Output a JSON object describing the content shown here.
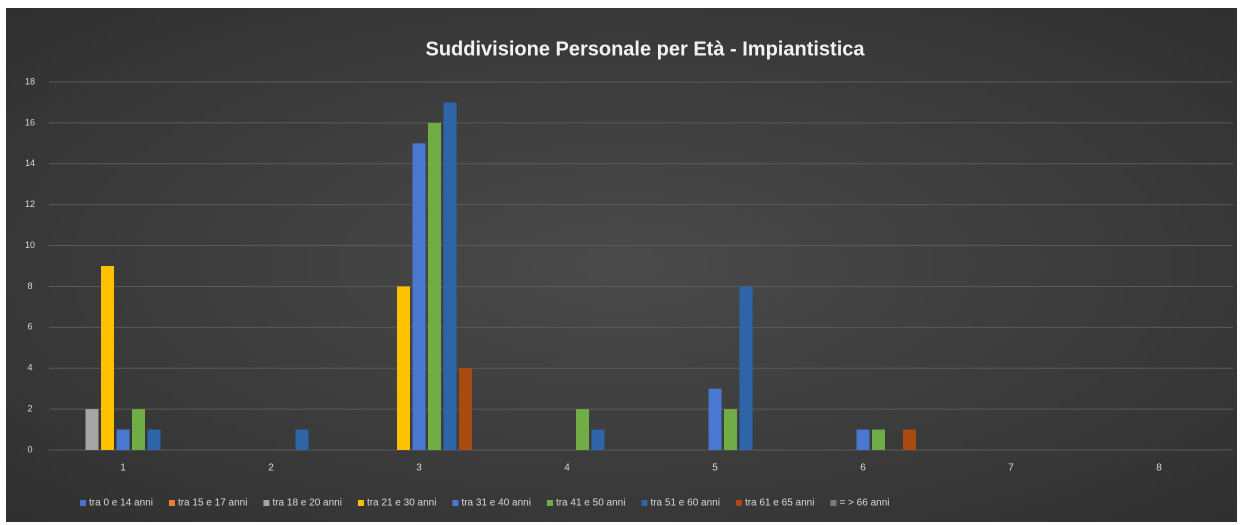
{
  "chart_data": {
    "type": "bar",
    "title": "Suddivisione Personale per Età - Impiantistica",
    "categories": [
      "1",
      "2",
      "3",
      "4",
      "5",
      "6",
      "7",
      "8"
    ],
    "series": [
      {
        "name": "tra 0 e 14 anni",
        "color": "#4472c4",
        "values": [
          null,
          null,
          null,
          null,
          null,
          null,
          null,
          null
        ]
      },
      {
        "name": "tra 15 e 17 anni",
        "color": "#ed7d31",
        "values": [
          null,
          null,
          null,
          null,
          null,
          null,
          null,
          null
        ]
      },
      {
        "name": "tra 18 e 20 anni",
        "color": "#a5a5a5",
        "values": [
          2,
          null,
          null,
          null,
          null,
          null,
          null,
          null
        ]
      },
      {
        "name": "tra 21 e 30 anni",
        "color": "#ffc000",
        "values": [
          9,
          null,
          8,
          null,
          null,
          null,
          null,
          null
        ]
      },
      {
        "name": "tra 31 e 40 anni",
        "color": "#4a78d0",
        "values": [
          1,
          null,
          15,
          null,
          3,
          1,
          null,
          null
        ]
      },
      {
        "name": "tra 41 e 50 anni",
        "color": "#70ad47",
        "values": [
          2,
          null,
          16,
          2,
          2,
          1,
          null,
          null
        ]
      },
      {
        "name": "tra 51 e 60 anni",
        "color": "#2e64a8",
        "values": [
          1,
          1,
          17,
          1,
          8,
          null,
          null,
          null
        ]
      },
      {
        "name": "tra 61 e 65 anni",
        "color": "#a94a10",
        "values": [
          null,
          null,
          4,
          null,
          null,
          1,
          null,
          null
        ]
      },
      {
        "name": "= > 66 anni",
        "color": "#7a7a7a",
        "values": [
          null,
          null,
          null,
          null,
          null,
          null,
          null,
          null
        ]
      }
    ],
    "ylim": [
      0,
      18
    ],
    "yticks": [
      0,
      2,
      4,
      6,
      8,
      10,
      12,
      14,
      16,
      18
    ],
    "grid": true,
    "legend": "bottom"
  }
}
